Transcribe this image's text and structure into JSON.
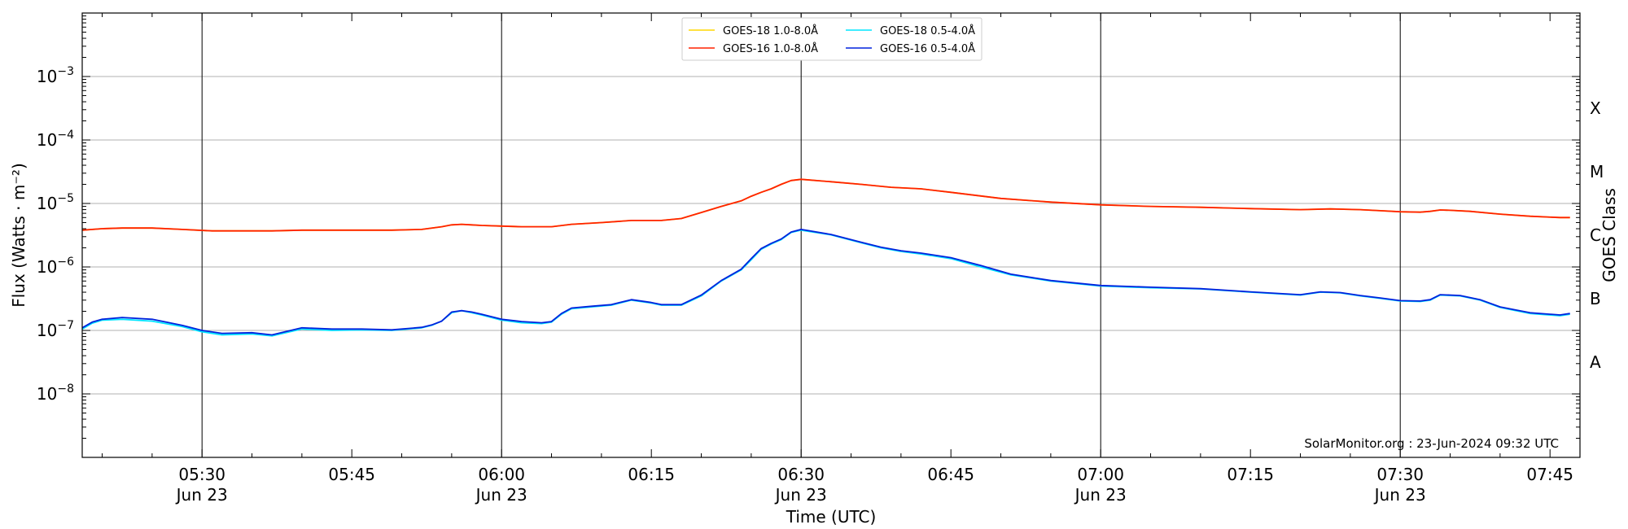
{
  "chart_data": {
    "type": "line",
    "title": "",
    "xlabel": "Time (UTC)",
    "ylabel": "Flux (Watts · m⁻²)",
    "y2label": "GOES Class",
    "yscale": "log",
    "ylim": [
      1e-09,
      0.01
    ],
    "xlim": [
      "05:18",
      "07:48"
    ],
    "grid": "horizontal at decades; vertical lines at 30-minute marks",
    "legend_position": "top-center",
    "credit": "SolarMonitor.org : 23-Jun-2024 09:32 UTC",
    "x_ticks": [
      {
        "time": "05:30",
        "label": "05:30",
        "sub": "Jun 23"
      },
      {
        "time": "05:45",
        "label": "05:45",
        "sub": ""
      },
      {
        "time": "06:00",
        "label": "06:00",
        "sub": "Jun 23"
      },
      {
        "time": "06:15",
        "label": "06:15",
        "sub": ""
      },
      {
        "time": "06:30",
        "label": "06:30",
        "sub": "Jun 23"
      },
      {
        "time": "06:45",
        "label": "06:45",
        "sub": ""
      },
      {
        "time": "07:00",
        "label": "07:00",
        "sub": "Jun 23"
      },
      {
        "time": "07:15",
        "label": "07:15",
        "sub": ""
      },
      {
        "time": "07:30",
        "label": "07:30",
        "sub": "Jun 23"
      },
      {
        "time": "07:45",
        "label": "07:45",
        "sub": ""
      }
    ],
    "vlines": [
      "05:30",
      "06:00",
      "06:30",
      "07:00",
      "07:30"
    ],
    "y_ticks": [
      {
        "exp": -8,
        "base": "10",
        "sup": "−8"
      },
      {
        "exp": -7,
        "base": "10",
        "sup": "−7"
      },
      {
        "exp": -6,
        "base": "10",
        "sup": "−6"
      },
      {
        "exp": -5,
        "base": "10",
        "sup": "−5"
      },
      {
        "exp": -4,
        "base": "10",
        "sup": "−4"
      },
      {
        "exp": -3,
        "base": "10",
        "sup": "−3"
      }
    ],
    "classes": [
      {
        "label": "A",
        "exp": -7.5
      },
      {
        "label": "B",
        "exp": -6.5
      },
      {
        "label": "C",
        "exp": -5.5
      },
      {
        "label": "M",
        "exp": -4.5
      },
      {
        "label": "X",
        "exp": -3.5
      }
    ],
    "series": [
      {
        "name": "GOES-18 1.0-8.0Å",
        "color": "#ffd700",
        "x": [
          "05:18",
          "05:20",
          "05:22",
          "05:25",
          "05:28",
          "05:31",
          "05:34",
          "05:37",
          "05:40",
          "05:43",
          "05:46",
          "05:49",
          "05:52",
          "05:54",
          "05:55",
          "05:56",
          "05:57",
          "05:58",
          "06:00",
          "06:02",
          "06:05",
          "06:07",
          "06:10",
          "06:13",
          "06:16",
          "06:18",
          "06:20",
          "06:22",
          "06:24",
          "06:25",
          "06:26",
          "06:27",
          "06:28",
          "06:29",
          "06:30",
          "06:33",
          "06:36",
          "06:39",
          "06:42",
          "06:45",
          "06:50",
          "06:55",
          "07:00",
          "07:05",
          "07:10",
          "07:15",
          "07:20",
          "07:23",
          "07:26",
          "07:28",
          "07:30",
          "07:32",
          "07:33",
          "07:34",
          "07:35",
          "07:37",
          "07:40",
          "07:43",
          "07:46",
          "07:47"
        ],
        "y": [
          3.8e-06,
          4e-06,
          4.1e-06,
          4.1e-06,
          3.9e-06,
          3.7e-06,
          3.7e-06,
          3.7e-06,
          3.8e-06,
          3.8e-06,
          3.8e-06,
          3.8e-06,
          3.9e-06,
          4.3e-06,
          4.6e-06,
          4.7e-06,
          4.6e-06,
          4.5e-06,
          4.4e-06,
          4.3e-06,
          4.3e-06,
          4.7e-06,
          5e-06,
          5.4e-06,
          5.4e-06,
          5.8e-06,
          7.2e-06,
          9e-06,
          1.1e-05,
          1.3e-05,
          1.5e-05,
          1.7e-05,
          2e-05,
          2.3e-05,
          2.4e-05,
          2.2e-05,
          2e-05,
          1.8e-05,
          1.7e-05,
          1.5e-05,
          1.2e-05,
          1.05e-05,
          9.5e-06,
          9e-06,
          8.7e-06,
          8.3e-06,
          8e-06,
          8.2e-06,
          8e-06,
          7.7e-06,
          7.4e-06,
          7.3e-06,
          7.5e-06,
          7.9e-06,
          7.8e-06,
          7.5e-06,
          6.8e-06,
          6.3e-06,
          6e-06,
          6e-06
        ]
      },
      {
        "name": "GOES-16 1.0-8.0Å",
        "color": "#ff2200",
        "x": [
          "05:18",
          "05:20",
          "05:22",
          "05:25",
          "05:28",
          "05:31",
          "05:34",
          "05:37",
          "05:40",
          "05:43",
          "05:46",
          "05:49",
          "05:52",
          "05:54",
          "05:55",
          "05:56",
          "05:57",
          "05:58",
          "06:00",
          "06:02",
          "06:05",
          "06:07",
          "06:10",
          "06:13",
          "06:16",
          "06:18",
          "06:20",
          "06:22",
          "06:24",
          "06:25",
          "06:26",
          "06:27",
          "06:28",
          "06:29",
          "06:30",
          "06:33",
          "06:36",
          "06:39",
          "06:42",
          "06:45",
          "06:50",
          "06:55",
          "07:00",
          "07:05",
          "07:10",
          "07:15",
          "07:20",
          "07:23",
          "07:26",
          "07:28",
          "07:30",
          "07:32",
          "07:33",
          "07:34",
          "07:35",
          "07:37",
          "07:40",
          "07:43",
          "07:46",
          "07:47"
        ],
        "y": [
          3.8e-06,
          4e-06,
          4.1e-06,
          4.1e-06,
          3.9e-06,
          3.7e-06,
          3.7e-06,
          3.7e-06,
          3.8e-06,
          3.8e-06,
          3.8e-06,
          3.8e-06,
          3.9e-06,
          4.3e-06,
          4.6e-06,
          4.7e-06,
          4.6e-06,
          4.5e-06,
          4.4e-06,
          4.3e-06,
          4.3e-06,
          4.7e-06,
          5e-06,
          5.4e-06,
          5.4e-06,
          5.8e-06,
          7.2e-06,
          9e-06,
          1.1e-05,
          1.3e-05,
          1.5e-05,
          1.7e-05,
          2e-05,
          2.3e-05,
          2.4e-05,
          2.2e-05,
          2e-05,
          1.8e-05,
          1.7e-05,
          1.5e-05,
          1.2e-05,
          1.05e-05,
          9.5e-06,
          9e-06,
          8.7e-06,
          8.3e-06,
          8e-06,
          8.2e-06,
          8e-06,
          7.7e-06,
          7.4e-06,
          7.3e-06,
          7.5e-06,
          7.9e-06,
          7.8e-06,
          7.5e-06,
          6.8e-06,
          6.3e-06,
          6e-06,
          6e-06
        ]
      },
      {
        "name": "GOES-18 0.5-4.0Å",
        "color": "#00e5ff",
        "x": [
          "05:18",
          "05:19",
          "05:20",
          "05:22",
          "05:25",
          "05:28",
          "05:30",
          "05:32",
          "05:35",
          "05:37",
          "05:40",
          "05:43",
          "05:46",
          "05:49",
          "05:52",
          "05:53",
          "05:54",
          "05:55",
          "05:56",
          "05:57",
          "05:58",
          "06:00",
          "06:02",
          "06:04",
          "06:05",
          "06:06",
          "06:07",
          "06:09",
          "06:11",
          "06:13",
          "06:15",
          "06:16",
          "06:18",
          "06:20",
          "06:22",
          "06:24",
          "06:25",
          "06:26",
          "06:27",
          "06:28",
          "06:29",
          "06:30",
          "06:33",
          "06:36",
          "06:38",
          "06:40",
          "06:42",
          "06:45",
          "06:48",
          "06:51",
          "06:55",
          "07:00",
          "07:05",
          "07:10",
          "07:15",
          "07:20",
          "07:22",
          "07:24",
          "07:26",
          "07:28",
          "07:30",
          "07:32",
          "07:33",
          "07:34",
          "07:36",
          "07:38",
          "07:40",
          "07:43",
          "07:46",
          "07:47"
        ],
        "y": [
          1.05e-07,
          1.3e-07,
          1.45e-07,
          1.5e-07,
          1.4e-07,
          1.15e-07,
          9.5e-08,
          8.5e-08,
          8.8e-08,
          8.2e-08,
          1.05e-07,
          1e-07,
          1.02e-07,
          1e-07,
          1.1e-07,
          1.2e-07,
          1.4e-07,
          1.9e-07,
          2.05e-07,
          1.9e-07,
          1.75e-07,
          1.45e-07,
          1.32e-07,
          1.28e-07,
          1.35e-07,
          1.8e-07,
          2.2e-07,
          2.35e-07,
          2.5e-07,
          3e-07,
          2.7e-07,
          2.5e-07,
          2.5e-07,
          3.5e-07,
          6e-07,
          9e-07,
          1.3e-06,
          1.9e-06,
          2.3e-06,
          2.7e-06,
          3.5e-06,
          3.8e-06,
          3.2e-06,
          2.4e-06,
          2e-06,
          1.75e-06,
          1.6e-06,
          1.35e-06,
          1e-06,
          7.5e-07,
          6e-07,
          5e-07,
          4.7e-07,
          4.5e-07,
          4e-07,
          3.6e-07,
          4e-07,
          3.9e-07,
          3.5e-07,
          3.2e-07,
          2.9e-07,
          2.85e-07,
          3e-07,
          3.6e-07,
          3.5e-07,
          3e-07,
          2.3e-07,
          1.85e-07,
          1.7e-07,
          1.8e-07
        ]
      },
      {
        "name": "GOES-16 0.5-4.0Å",
        "color": "#0022dd",
        "x": [
          "05:18",
          "05:19",
          "05:20",
          "05:22",
          "05:25",
          "05:28",
          "05:30",
          "05:32",
          "05:35",
          "05:37",
          "05:40",
          "05:43",
          "05:46",
          "05:49",
          "05:52",
          "05:53",
          "05:54",
          "05:55",
          "05:56",
          "05:57",
          "05:58",
          "06:00",
          "06:02",
          "06:04",
          "06:05",
          "06:06",
          "06:07",
          "06:09",
          "06:11",
          "06:13",
          "06:15",
          "06:16",
          "06:18",
          "06:20",
          "06:22",
          "06:24",
          "06:25",
          "06:26",
          "06:27",
          "06:28",
          "06:29",
          "06:30",
          "06:33",
          "06:36",
          "06:38",
          "06:40",
          "06:42",
          "06:45",
          "06:48",
          "06:51",
          "06:55",
          "07:00",
          "07:05",
          "07:10",
          "07:15",
          "07:20",
          "07:22",
          "07:24",
          "07:26",
          "07:28",
          "07:30",
          "07:32",
          "07:33",
          "07:34",
          "07:36",
          "07:38",
          "07:40",
          "07:43",
          "07:46",
          "07:47"
        ],
        "y": [
          1.1e-07,
          1.35e-07,
          1.5e-07,
          1.6e-07,
          1.5e-07,
          1.2e-07,
          1e-07,
          9e-08,
          9.2e-08,
          8.5e-08,
          1.1e-07,
          1.05e-07,
          1.05e-07,
          1.02e-07,
          1.12e-07,
          1.22e-07,
          1.4e-07,
          1.95e-07,
          2.05e-07,
          1.95e-07,
          1.8e-07,
          1.5e-07,
          1.38e-07,
          1.32e-07,
          1.38e-07,
          1.85e-07,
          2.25e-07,
          2.4e-07,
          2.55e-07,
          3.05e-07,
          2.75e-07,
          2.55e-07,
          2.55e-07,
          3.6e-07,
          6.1e-07,
          9.2e-07,
          1.35e-06,
          1.95e-06,
          2.35e-06,
          2.75e-06,
          3.55e-06,
          3.9e-06,
          3.25e-06,
          2.45e-06,
          2.05e-06,
          1.8e-06,
          1.65e-06,
          1.4e-06,
          1.05e-06,
          7.7e-07,
          6.1e-07,
          5.1e-07,
          4.8e-07,
          4.55e-07,
          4.05e-07,
          3.65e-07,
          4.05e-07,
          3.95e-07,
          3.55e-07,
          3.25e-07,
          2.95e-07,
          2.9e-07,
          3.05e-07,
          3.65e-07,
          3.55e-07,
          3.05e-07,
          2.35e-07,
          1.9e-07,
          1.75e-07,
          1.85e-07
        ]
      }
    ]
  }
}
